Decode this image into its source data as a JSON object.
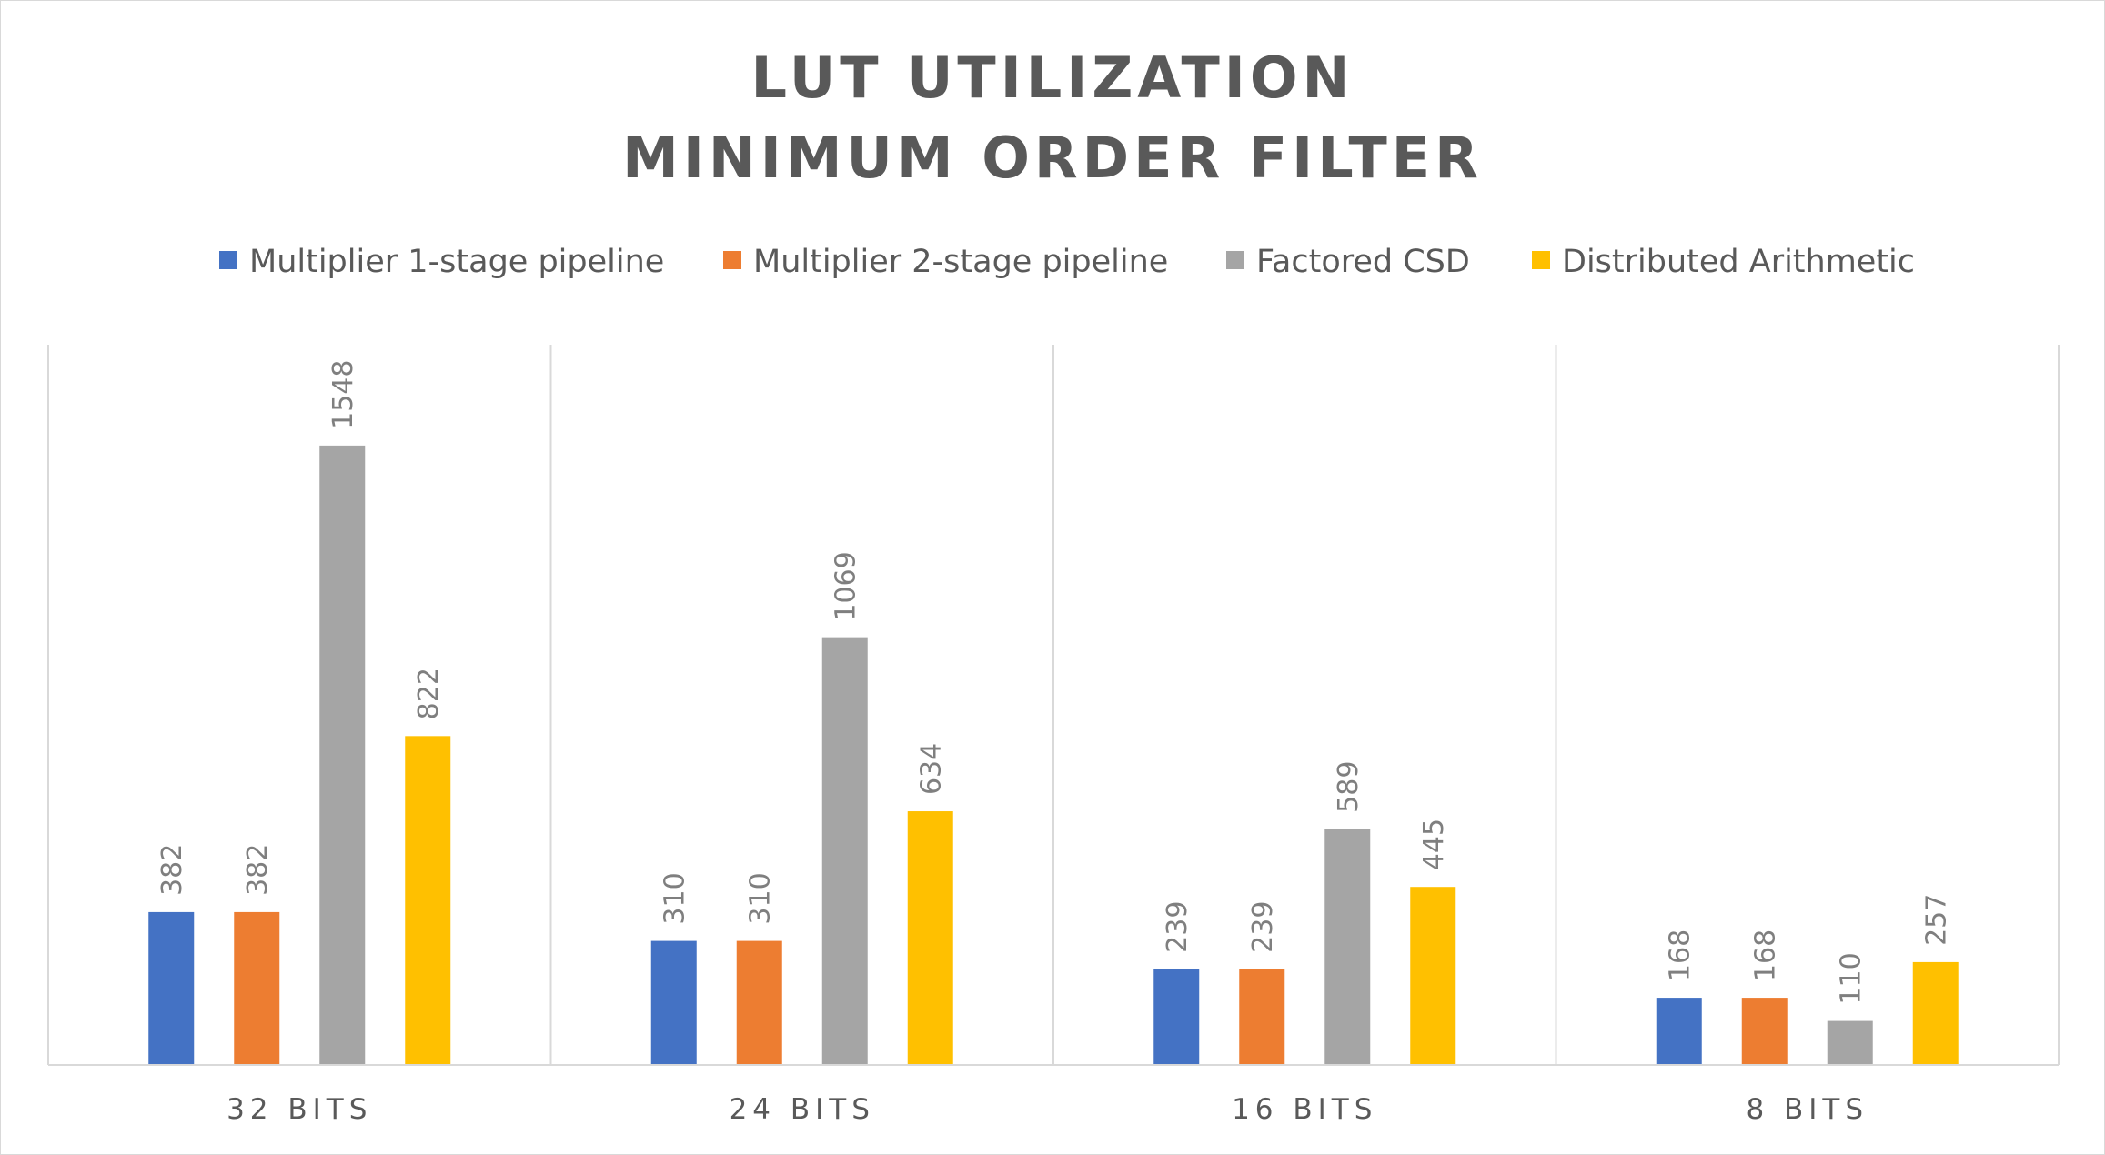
{
  "chart_data": {
    "type": "bar",
    "title_lines": [
      "LUT UTILIZATION",
      "MINIMUM ORDER FILTER"
    ],
    "xlabel": "",
    "ylabel": "",
    "categories": [
      "32 BITS",
      "24 BITS",
      "16 BITS",
      "8 BITS"
    ],
    "series": [
      {
        "name": "Multiplier 1-stage pipeline",
        "color": "#4472C4",
        "values": [
          382,
          310,
          239,
          168
        ]
      },
      {
        "name": "Multiplier 2-stage pipeline",
        "color": "#ED7D31",
        "values": [
          382,
          310,
          239,
          168
        ]
      },
      {
        "name": "Factored CSD",
        "color": "#A5A5A5",
        "values": [
          1548,
          1069,
          589,
          110
        ]
      },
      {
        "name": "Distributed Arithmetic",
        "color": "#FFC000",
        "values": [
          822,
          634,
          445,
          257
        ]
      }
    ],
    "ylim": [
      0,
      1800
    ],
    "gridlines": false,
    "category_separators": true,
    "legend_position": "top",
    "data_labels": true,
    "data_label_orientation": "vertical"
  }
}
